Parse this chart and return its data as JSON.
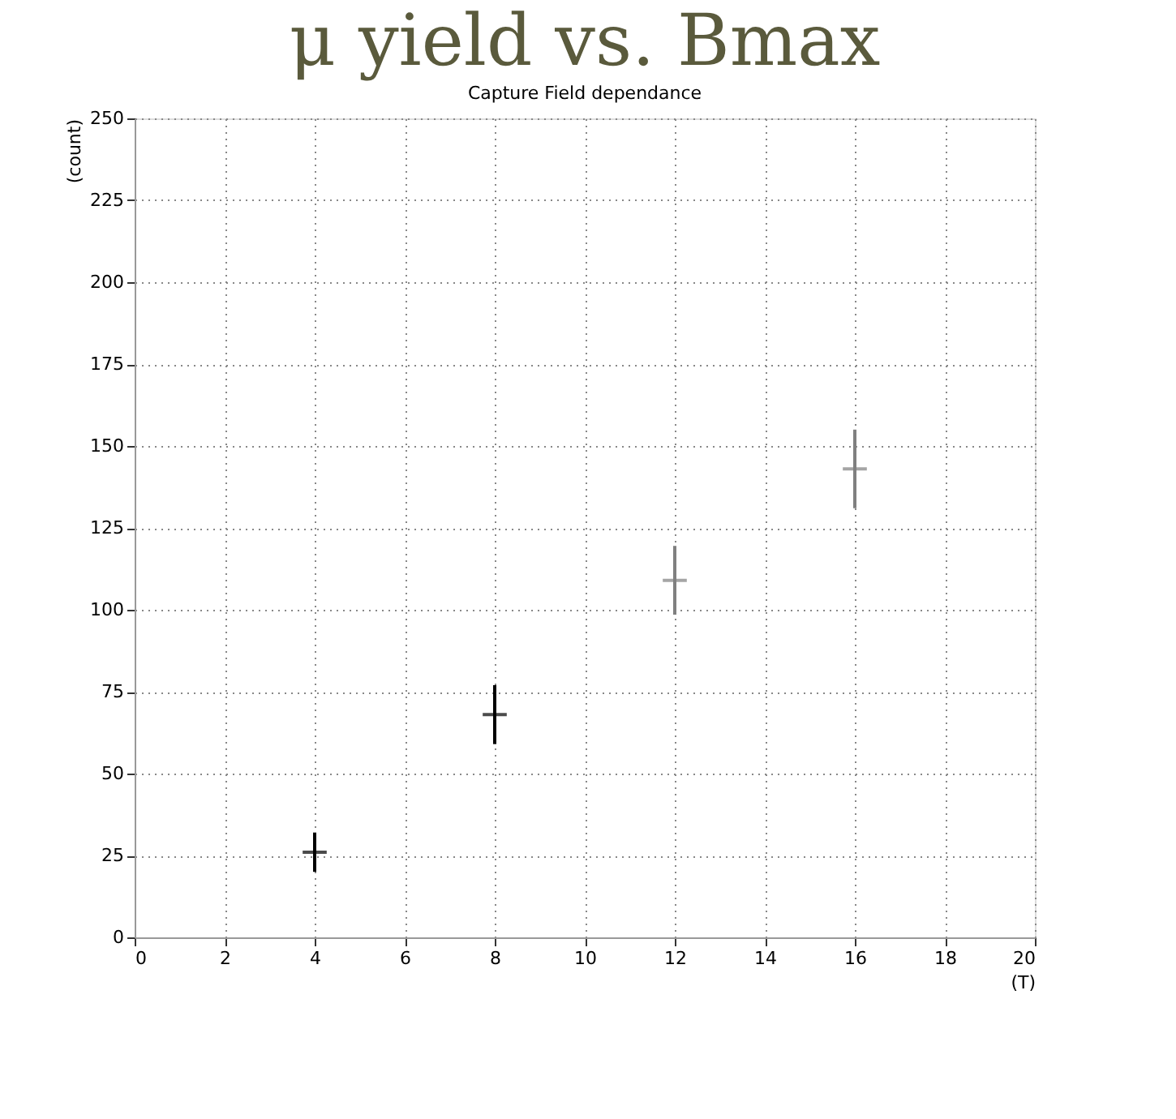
{
  "chart_data": {
    "type": "scatter",
    "title": "μ yield vs. Bmax",
    "subtitle": "Capture Field dependance",
    "xlabel": "(T)",
    "ylabel": "(count)",
    "x": [
      4,
      8,
      12,
      16
    ],
    "series": [
      {
        "values": [
          26,
          68,
          109,
          143
        ],
        "colors": [
          "#000000",
          "#000000",
          "#808080",
          "#808080"
        ],
        "errors": [
          6,
          9,
          10.5,
          12
        ]
      }
    ],
    "xlim": [
      0,
      20
    ],
    "xticks": [
      0,
      2,
      4,
      6,
      8,
      10,
      12,
      14,
      16,
      18,
      20
    ],
    "ylim": [
      0,
      250
    ],
    "yticks": [
      0,
      25,
      50,
      75,
      100,
      125,
      150,
      175,
      200,
      225,
      250
    ],
    "grid": true,
    "marker": "cross"
  }
}
